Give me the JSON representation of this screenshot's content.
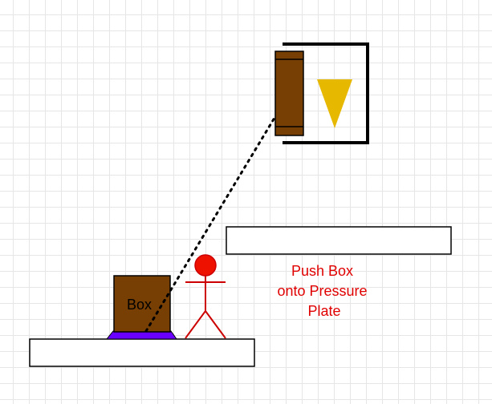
{
  "box": {
    "label": "Box"
  },
  "instruction": {
    "lines": [
      "Push Box",
      "onto Pressure",
      "Plate"
    ]
  },
  "colors": {
    "box_fill": "#783f04",
    "pressure_plate": "#6a00ff",
    "door_fill": "#783f04",
    "arrow": "#e6b800",
    "stick_figure": "#cc0000",
    "head_fill": "#ee1100",
    "instruction_text": "#e00000",
    "connection_line": "#000000"
  },
  "icons": {
    "arrow": "down-triangle-icon",
    "character": "stick-figure-icon"
  }
}
